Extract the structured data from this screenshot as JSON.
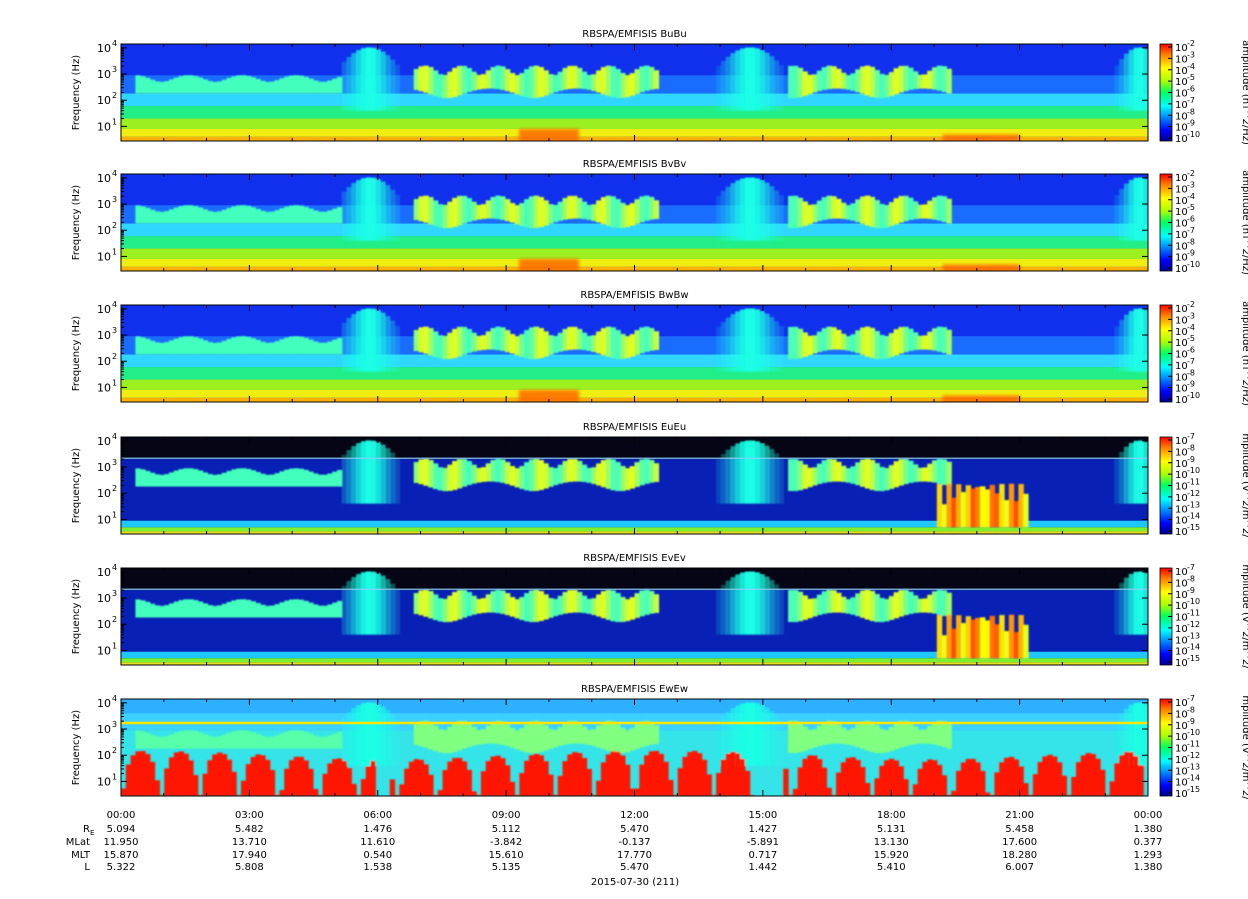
{
  "chart_data": {
    "type": "heatmap",
    "x_ticks": [
      "00:00",
      "03:00",
      "06:00",
      "09:00",
      "12:00",
      "15:00",
      "18:00",
      "21:00",
      "00:00"
    ],
    "y_ticks": [
      "10",
      "10",
      "10",
      "10"
    ],
    "y_tick_exponents": [
      "1",
      "2",
      "3",
      "4"
    ],
    "ylabel": "Frequency (Hz)",
    "panels": [
      {
        "title": "RBSPA/EMFISIS  BuBu",
        "zlabel": "amplitude (nT^2/Hz)",
        "z_exponents": [
          "-2",
          "-3",
          "-4",
          "-5",
          "-6",
          "-7",
          "-8",
          "-9",
          "-10"
        ],
        "kind": "B",
        "variant": "u",
        "z_range": [
          1e-10,
          0.01
        ]
      },
      {
        "title": "RBSPA/EMFISIS  BvBv",
        "zlabel": "amplitude (nT^2/Hz)",
        "z_exponents": [
          "-2",
          "-3",
          "-4",
          "-5",
          "-6",
          "-7",
          "-8",
          "-9",
          "-10"
        ],
        "kind": "B",
        "variant": "v",
        "z_range": [
          1e-10,
          0.01
        ]
      },
      {
        "title": "RBSPA/EMFISIS  BwBw",
        "zlabel": "amplitude (nT^2/Hz)",
        "z_exponents": [
          "-2",
          "-3",
          "-4",
          "-5",
          "-6",
          "-7",
          "-8",
          "-9",
          "-10"
        ],
        "kind": "B",
        "variant": "w",
        "z_range": [
          1e-10,
          0.01
        ]
      },
      {
        "title": "RBSPA/EMFISIS  EuEu",
        "zlabel": "mplitude (V^2/m^2/",
        "z_exponents": [
          "-7",
          "-8",
          "-9",
          "-10",
          "-11",
          "-12",
          "-13",
          "-14",
          "-15"
        ],
        "kind": "E",
        "variant": "u",
        "z_range": [
          1e-15,
          1e-07
        ]
      },
      {
        "title": "RBSPA/EMFISIS  EvEv",
        "zlabel": "mplitude (V^2/m^2/",
        "z_exponents": [
          "-7",
          "-8",
          "-9",
          "-10",
          "-11",
          "-12",
          "-13",
          "-14",
          "-15"
        ],
        "kind": "E",
        "variant": "v",
        "z_range": [
          1e-15,
          1e-07
        ]
      },
      {
        "title": "RBSPA/EMFISIS  EwEw",
        "zlabel": "mplitude (V^2/m^2/",
        "z_exponents": [
          "-7",
          "-8",
          "-9",
          "-10",
          "-11",
          "-12",
          "-13",
          "-14",
          "-15"
        ],
        "kind": "Ew",
        "variant": "w",
        "z_range": [
          1e-15,
          1e-07
        ]
      }
    ],
    "ephemeris": {
      "rows": [
        {
          "label": "R",
          "label_sub": "E",
          "values": [
            "5.094",
            "5.482",
            "1.476",
            "5.112",
            "5.470",
            "1.427",
            "5.131",
            "5.458",
            "1.380"
          ]
        },
        {
          "label": "MLat",
          "label_sub": "",
          "values": [
            "11.950",
            "13.710",
            "11.610",
            "-3.842",
            "-0.137",
            "-5.891",
            "13.130",
            "17.600",
            "0.377"
          ]
        },
        {
          "label": "MLT",
          "label_sub": "",
          "values": [
            "15.870",
            "17.940",
            "0.540",
            "15.610",
            "17.770",
            "0.717",
            "15.920",
            "18.280",
            "1.293"
          ]
        },
        {
          "label": "L",
          "label_sub": "",
          "values": [
            "5.322",
            "5.808",
            "1.538",
            "5.135",
            "5.470",
            "1.442",
            "5.410",
            "6.007",
            "1.380"
          ]
        }
      ]
    },
    "date_label": "2015-07-30 (211)"
  }
}
